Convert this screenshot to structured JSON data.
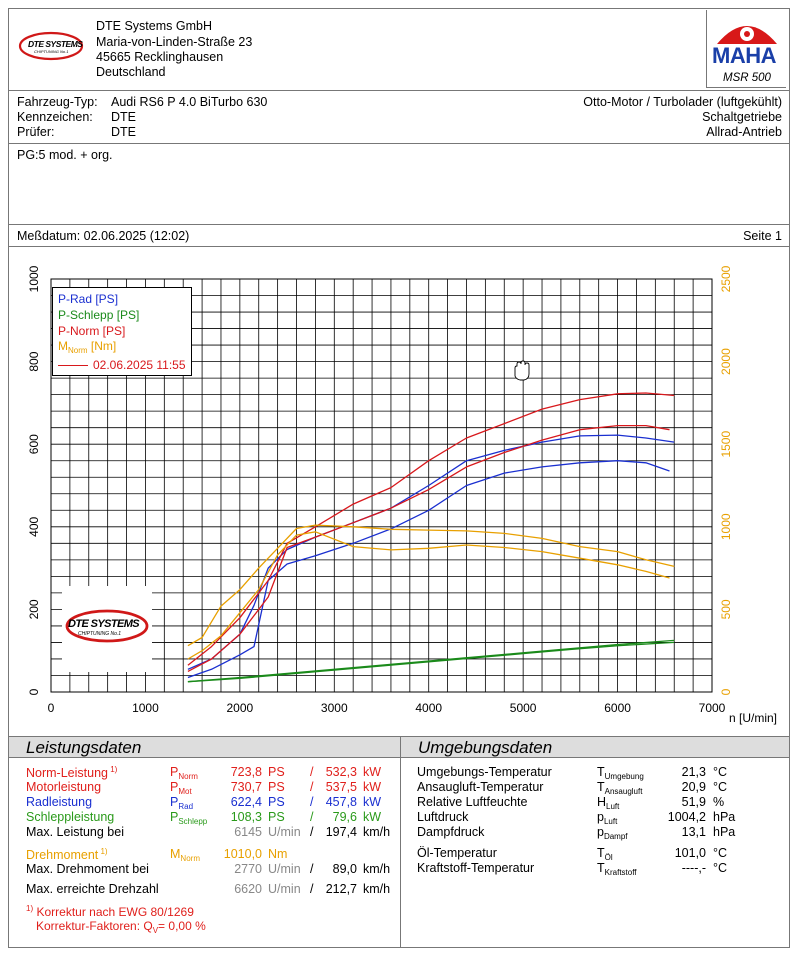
{
  "company": {
    "name": "DTE Systems GmbH",
    "street": "Maria-von-Linden-Straße 23",
    "city": "45665 Recklinghausen",
    "country": "Deutschland",
    "logo_text": "DTE SYSTEMS",
    "logo_sub": "CHIPTUNING No.1"
  },
  "maha": {
    "logo_text": "MAHA",
    "model": "MSR 500"
  },
  "vehicle": {
    "type_label": "Fahrzeug-Typ:",
    "type_value": "Audi RS6 P 4.0 BiTurbo 630",
    "plate_label": "Kennzeichen:",
    "plate_value": "DTE",
    "tester_label": "Prüfer:",
    "tester_value": "DTE",
    "engine": "Otto-Motor / Turbolader (luftgekühlt)",
    "gearbox": "Schaltgetriebe",
    "drive": "Allrad-Antrieb"
  },
  "note": "PG:5 mod. + org.",
  "measure": {
    "date": "Meßdatum: 02.06.2025 (12:02)",
    "page": "Seite 1"
  },
  "legend": {
    "p_rad": "P-Rad [PS]",
    "p_schlepp": "P-Schlepp [PS]",
    "p_norm": "P-Norm [PS]",
    "m_norm_main": "M",
    "m_norm_sub": "Norm",
    "m_norm_unit": " [Nm]",
    "ref_date": "02.06.2025 11:55"
  },
  "chart_data": {
    "type": "line",
    "xlabel": "n [U/min]",
    "xlim": [
      0,
      7000
    ],
    "ylim_left": [
      0,
      1000
    ],
    "ylim_right": [
      0,
      2500
    ],
    "x_ticks": [
      "0",
      "1000",
      "2000",
      "3000",
      "4000",
      "5000",
      "6000",
      "7000"
    ],
    "y_ticks_left": [
      "0",
      "200",
      "400",
      "600",
      "800",
      "1000"
    ],
    "y_ticks_right": [
      "0",
      "500",
      "1000",
      "1500",
      "2000",
      "2500"
    ],
    "grid": true,
    "legend_position": "top-left",
    "colors": {
      "p_rad": "#1a2fd0",
      "p_schlepp": "#1a8a1a",
      "p_norm": "#d8181c",
      "m_norm": "#e8a000"
    },
    "series": [
      {
        "name": "P-Rad [PS]",
        "axis": "left",
        "run": "current",
        "x": [
          1450,
          1700,
          2000,
          2150,
          2300,
          2500,
          2800,
          3200,
          3600,
          4000,
          4400,
          4800,
          5200,
          5600,
          6000,
          6300,
          6600
        ],
        "y": [
          55,
          80,
          140,
          210,
          300,
          345,
          375,
          410,
          445,
          500,
          560,
          585,
          605,
          620,
          622,
          615,
          605
        ]
      },
      {
        "name": "P-Rad [PS]",
        "axis": "left",
        "run": "reference",
        "x": [
          1450,
          1700,
          2000,
          2150,
          2300,
          2500,
          2800,
          3200,
          3600,
          4000,
          4400,
          4800,
          5200,
          5600,
          6000,
          6300,
          6550
        ],
        "y": [
          35,
          55,
          90,
          110,
          270,
          310,
          330,
          360,
          395,
          440,
          500,
          530,
          545,
          555,
          560,
          555,
          535
        ]
      },
      {
        "name": "P-Schlepp [PS]",
        "axis": "left",
        "run": "current",
        "x": [
          1450,
          2000,
          2500,
          3000,
          3500,
          4000,
          4500,
          5000,
          5500,
          6000,
          6600
        ],
        "y": [
          25,
          35,
          45,
          55,
          65,
          75,
          85,
          95,
          105,
          115,
          125
        ]
      },
      {
        "name": "P-Schlepp [PS]",
        "axis": "left",
        "run": "reference",
        "x": [
          1450,
          2000,
          2500,
          3000,
          3500,
          4000,
          4500,
          5000,
          5500,
          6000,
          6600
        ],
        "y": [
          25,
          33,
          43,
          53,
          63,
          73,
          83,
          93,
          103,
          112,
          120
        ]
      },
      {
        "name": "P-Norm [PS]",
        "axis": "left",
        "run": "current",
        "x": [
          1450,
          1700,
          2000,
          2300,
          2500,
          2800,
          3200,
          3600,
          4000,
          4400,
          4800,
          5200,
          5600,
          6000,
          6300,
          6600
        ],
        "y": [
          65,
          110,
          180,
          270,
          360,
          400,
          455,
          495,
          560,
          615,
          650,
          685,
          708,
          722,
          724,
          718
        ]
      },
      {
        "name": "P-Norm [PS]",
        "axis": "left",
        "run": "reference",
        "x": [
          1450,
          1700,
          2000,
          2300,
          2500,
          2800,
          3200,
          3600,
          4000,
          4400,
          4800,
          5200,
          5600,
          6000,
          6300,
          6550
        ],
        "y": [
          50,
          80,
          140,
          230,
          350,
          375,
          410,
          445,
          490,
          545,
          580,
          610,
          635,
          645,
          645,
          635
        ]
      },
      {
        "name": "M Norm [Nm]",
        "axis": "right",
        "run": "current",
        "x": [
          1450,
          1600,
          1800,
          2000,
          2200,
          2400,
          2600,
          2800,
          3200,
          3600,
          4000,
          4400,
          4800,
          5200,
          5600,
          6000,
          6300,
          6600
        ],
        "y": [
          280,
          330,
          520,
          620,
          750,
          870,
          990,
          1010,
          1000,
          985,
          980,
          975,
          960,
          930,
          880,
          850,
          800,
          760
        ]
      },
      {
        "name": "M Norm [Nm]",
        "axis": "right",
        "run": "reference",
        "x": [
          1450,
          1600,
          1800,
          2000,
          2200,
          2400,
          2600,
          2800,
          3200,
          3600,
          4000,
          4400,
          4800,
          5200,
          5600,
          6000,
          6300,
          6550
        ],
        "y": [
          200,
          250,
          340,
          480,
          620,
          830,
          950,
          970,
          880,
          860,
          870,
          890,
          875,
          850,
          810,
          770,
          730,
          690
        ]
      }
    ]
  },
  "leistungsdaten": {
    "title": "Leistungsdaten",
    "rows": [
      {
        "label": "Norm-Leistung",
        "mark": "1)",
        "sym": "P",
        "sub": "Norm",
        "v1": "723,8",
        "u1": "PS",
        "sep": "/",
        "v2": "532,3",
        "u2": "kW",
        "color": "red"
      },
      {
        "label": "Motorleistung",
        "mark": "",
        "sym": "P",
        "sub": "Mot",
        "v1": "730,7",
        "u1": "PS",
        "sep": "/",
        "v2": "537,5",
        "u2": "kW",
        "color": "red"
      },
      {
        "label": "Radleistung",
        "mark": "",
        "sym": "P",
        "sub": "Rad",
        "v1": "622,4",
        "u1": "PS",
        "sep": "/",
        "v2": "457,8",
        "u2": "kW",
        "color": "blue"
      },
      {
        "label": "Schleppleistung",
        "mark": "",
        "sym": "P",
        "sub": "Schlepp",
        "v1": "108,3",
        "u1": "PS",
        "sep": "/",
        "v2": "79,6",
        "u2": "kW",
        "color": "green"
      },
      {
        "label": "Max. Leistung bei",
        "mark": "",
        "sym": "",
        "sub": "",
        "v1": "6145",
        "u1": "U/min",
        "sep": "/",
        "v2": "197,4",
        "u2": "km/h",
        "color": "gray"
      }
    ],
    "torque": {
      "label": "Drehmoment",
      "mark": "1)",
      "sym": "M",
      "sub": "Norm",
      "v1": "1010,0",
      "u1": "Nm"
    },
    "torque_at": {
      "label": "Max. Drehmoment bei",
      "v1": "2770",
      "u1": "U/min",
      "sep": "/",
      "v2": "89,0",
      "u2": "km/h"
    },
    "max_rpm": {
      "label": "Max. erreichte Drehzahl",
      "v1": "6620",
      "u1": "U/min",
      "sep": "/",
      "v2": "212,7",
      "u2": "km/h"
    },
    "footnote1": "Korrektur nach EWG 80/1269",
    "footnote1_mark": "1)",
    "footnote2_label": "Korrektur-Faktoren: Q",
    "footnote2_sub": "V",
    "footnote2_value": "=    0,00 %"
  },
  "umgebungsdaten": {
    "title": "Umgebungsdaten",
    "rows": [
      {
        "label": "Umgebungs-Temperatur",
        "sym": "T",
        "sub": "Umgebung",
        "val": "21,3",
        "unit": "°C"
      },
      {
        "label": "Ansaugluft-Temperatur",
        "sym": "T",
        "sub": "Ansaugluft",
        "val": "20,9",
        "unit": "°C"
      },
      {
        "label": "Relative Luftfeuchte",
        "sym": "H",
        "sub": "Luft",
        "val": "51,9",
        "unit": "%"
      },
      {
        "label": "Luftdruck",
        "sym": "p",
        "sub": "Luft",
        "val": "1004,2",
        "unit": "hPa"
      },
      {
        "label": "Dampfdruck",
        "sym": "p",
        "sub": "Dampf",
        "val": "13,1",
        "unit": "hPa"
      },
      {
        "label": "Öl-Temperatur",
        "sym": "T",
        "sub": "Öl",
        "val": "101,0",
        "unit": "°C"
      },
      {
        "label": "Kraftstoff-Temperatur",
        "sym": "T",
        "sub": "Kraftstoff",
        "val": "----,-",
        "unit": "°C"
      }
    ]
  }
}
